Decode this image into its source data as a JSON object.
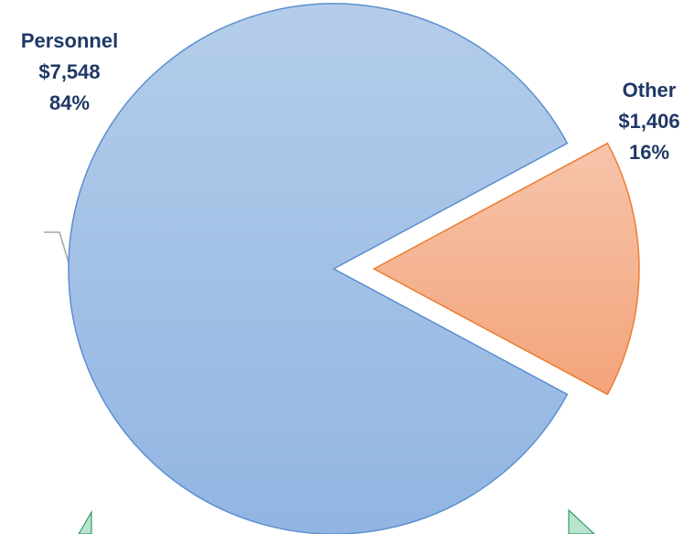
{
  "chart_data": {
    "type": "pie",
    "title": "",
    "slices": [
      {
        "label": "Personnel",
        "value": 7548,
        "value_text": "$7,548",
        "percent_text": "84%",
        "exploded": false,
        "fill_top": "#b4cdea",
        "fill_bottom": "#91b5e2",
        "stroke": "#5b8fcf"
      },
      {
        "label": "Other",
        "value": 1406,
        "value_text": "$1,406",
        "percent_text": "16%",
        "exploded": true,
        "fill_top": "#f7c4ab",
        "fill_bottom": "#f3a47a",
        "stroke": "#ed7d31"
      }
    ],
    "legend": "none",
    "decorations": {
      "arrow_fill": "#b9e5cf",
      "arrow_stroke": "#3a9a6a",
      "leader_color": "#a6a6a6"
    }
  }
}
